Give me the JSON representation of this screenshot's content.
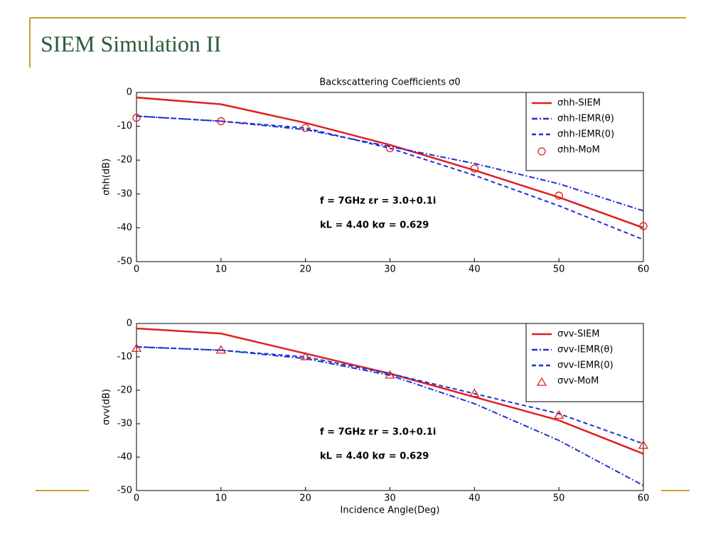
{
  "title": "SIEM Simulation II",
  "chart_data": [
    {
      "type": "line",
      "title": "Backscattering Coefficients σ0",
      "ylabel": "σhh(dB)",
      "x": [
        0,
        10,
        20,
        30,
        40,
        50,
        60
      ],
      "xlim": [
        0,
        60
      ],
      "xticks": [
        0,
        10,
        20,
        30,
        40,
        50,
        60
      ],
      "ylim": [
        -50,
        0
      ],
      "yticks": [
        0,
        -10,
        -20,
        -30,
        -40,
        -50
      ],
      "annotations": [
        "f = 7GHz  εr = 3.0+0.1i",
        "kL = 4.40   kσ = 0.629"
      ],
      "series": [
        {
          "name": "σhh-SIEM",
          "color": "#e02020",
          "linestyle": "solid",
          "values": [
            -1.5,
            -3.5,
            -9,
            -15.5,
            -23,
            -31,
            -40
          ]
        },
        {
          "name": "σhh-IEMR(θ)",
          "color": "#2030d0",
          "linestyle": "dashdot",
          "values": [
            -7,
            -8.5,
            -11,
            -16,
            -21,
            -27,
            -35
          ]
        },
        {
          "name": "σhh-IEMR(0)",
          "color": "#2030d0",
          "linestyle": "dashed",
          "values": [
            -7,
            -8.5,
            -10.5,
            -16.5,
            -24.5,
            -33.5,
            -43.5
          ]
        },
        {
          "name": "σhh-MoM",
          "color": "#e02020",
          "linestyle": "none",
          "marker": "circle",
          "values": [
            -7.5,
            -8.5,
            -10.5,
            -16.5,
            -22.5,
            -30.5,
            -39.5
          ]
        }
      ]
    },
    {
      "type": "line",
      "ylabel": "σvv(dB)",
      "xlabel": "Incidence Angle(Deg)",
      "x": [
        0,
        10,
        20,
        30,
        40,
        50,
        60
      ],
      "xlim": [
        0,
        60
      ],
      "xticks": [
        0,
        10,
        20,
        30,
        40,
        50,
        60
      ],
      "ylim": [
        -50,
        0
      ],
      "yticks": [
        0,
        -10,
        -20,
        -30,
        -40,
        -50
      ],
      "annotations": [
        "f = 7GHz  εr = 3.0+0.1i",
        "kL = 4.40   kσ = 0.629"
      ],
      "series": [
        {
          "name": "σvv-SIEM",
          "color": "#e02020",
          "linestyle": "solid",
          "values": [
            -1.5,
            -3,
            -9,
            -15,
            -22,
            -29,
            -39
          ]
        },
        {
          "name": "σvv-IEMR(θ)",
          "color": "#2030d0",
          "linestyle": "dashdot",
          "values": [
            -7,
            -8,
            -10.5,
            -15.5,
            -24,
            -35,
            -48.5
          ]
        },
        {
          "name": "σvv-IEMR(0)",
          "color": "#2030d0",
          "linestyle": "dashed",
          "values": [
            -7,
            -8,
            -10,
            -15,
            -21,
            -27,
            -36
          ]
        },
        {
          "name": "σvv-MoM",
          "color": "#e02020",
          "linestyle": "none",
          "marker": "triangle",
          "values": [
            -7.5,
            -8,
            -10,
            -15.5,
            -21,
            -27.5,
            -36.5
          ]
        }
      ]
    }
  ]
}
